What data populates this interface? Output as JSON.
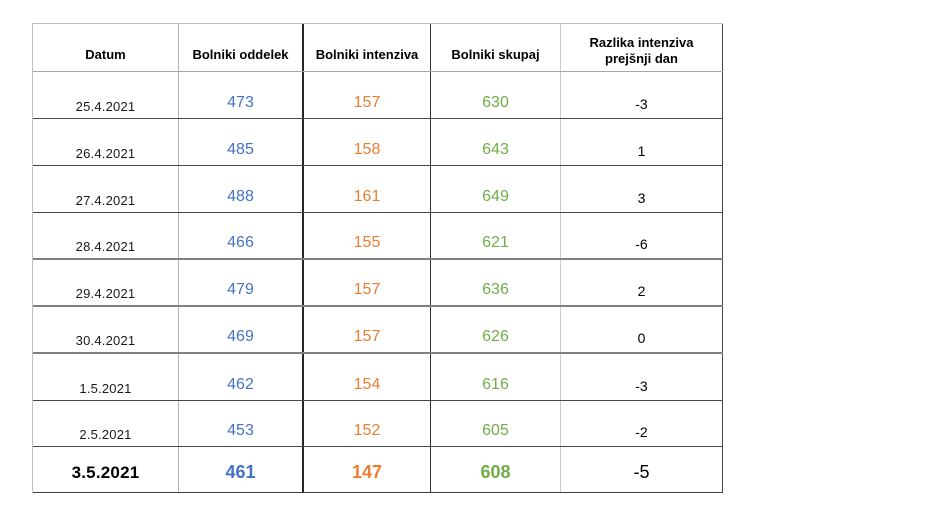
{
  "table": {
    "columns": {
      "datum": "Datum",
      "oddelek": "Bolniki oddelek",
      "intenziva": "Bolniki intenziva",
      "skupaj": "Bolniki skupaj",
      "razlika_line1": "Razlika intenziva",
      "razlika_line2": "prejšnji dan"
    },
    "rows": [
      {
        "datum": "25.4.2021",
        "oddelek": "473",
        "intenziva": "157",
        "skupaj": "630",
        "razlika": "-3"
      },
      {
        "datum": "26.4.2021",
        "oddelek": "485",
        "intenziva": "158",
        "skupaj": "643",
        "razlika": "1"
      },
      {
        "datum": "27.4.2021",
        "oddelek": "488",
        "intenziva": "161",
        "skupaj": "649",
        "razlika": "3"
      },
      {
        "datum": "28.4.2021",
        "oddelek": "466",
        "intenziva": "155",
        "skupaj": "621",
        "razlika": "-6"
      },
      {
        "datum": "29.4.2021",
        "oddelek": "479",
        "intenziva": "157",
        "skupaj": "636",
        "razlika": "2"
      },
      {
        "datum": "30.4.2021",
        "oddelek": "469",
        "intenziva": "157",
        "skupaj": "626",
        "razlika": "0"
      },
      {
        "datum": "1.5.2021",
        "oddelek": "462",
        "intenziva": "154",
        "skupaj": "616",
        "razlika": "-3"
      },
      {
        "datum": "2.5.2021",
        "oddelek": "453",
        "intenziva": "152",
        "skupaj": "605",
        "razlika": "-2"
      },
      {
        "datum": "3.5.2021",
        "oddelek": "461",
        "intenziva": "147",
        "skupaj": "608",
        "razlika": "-5"
      }
    ],
    "colors": {
      "bolniki_oddelek": "#4472c4",
      "bolniki_intenziva": "#ed7d31",
      "bolniki_skupaj": "#70ad47",
      "text": "#000000"
    }
  }
}
